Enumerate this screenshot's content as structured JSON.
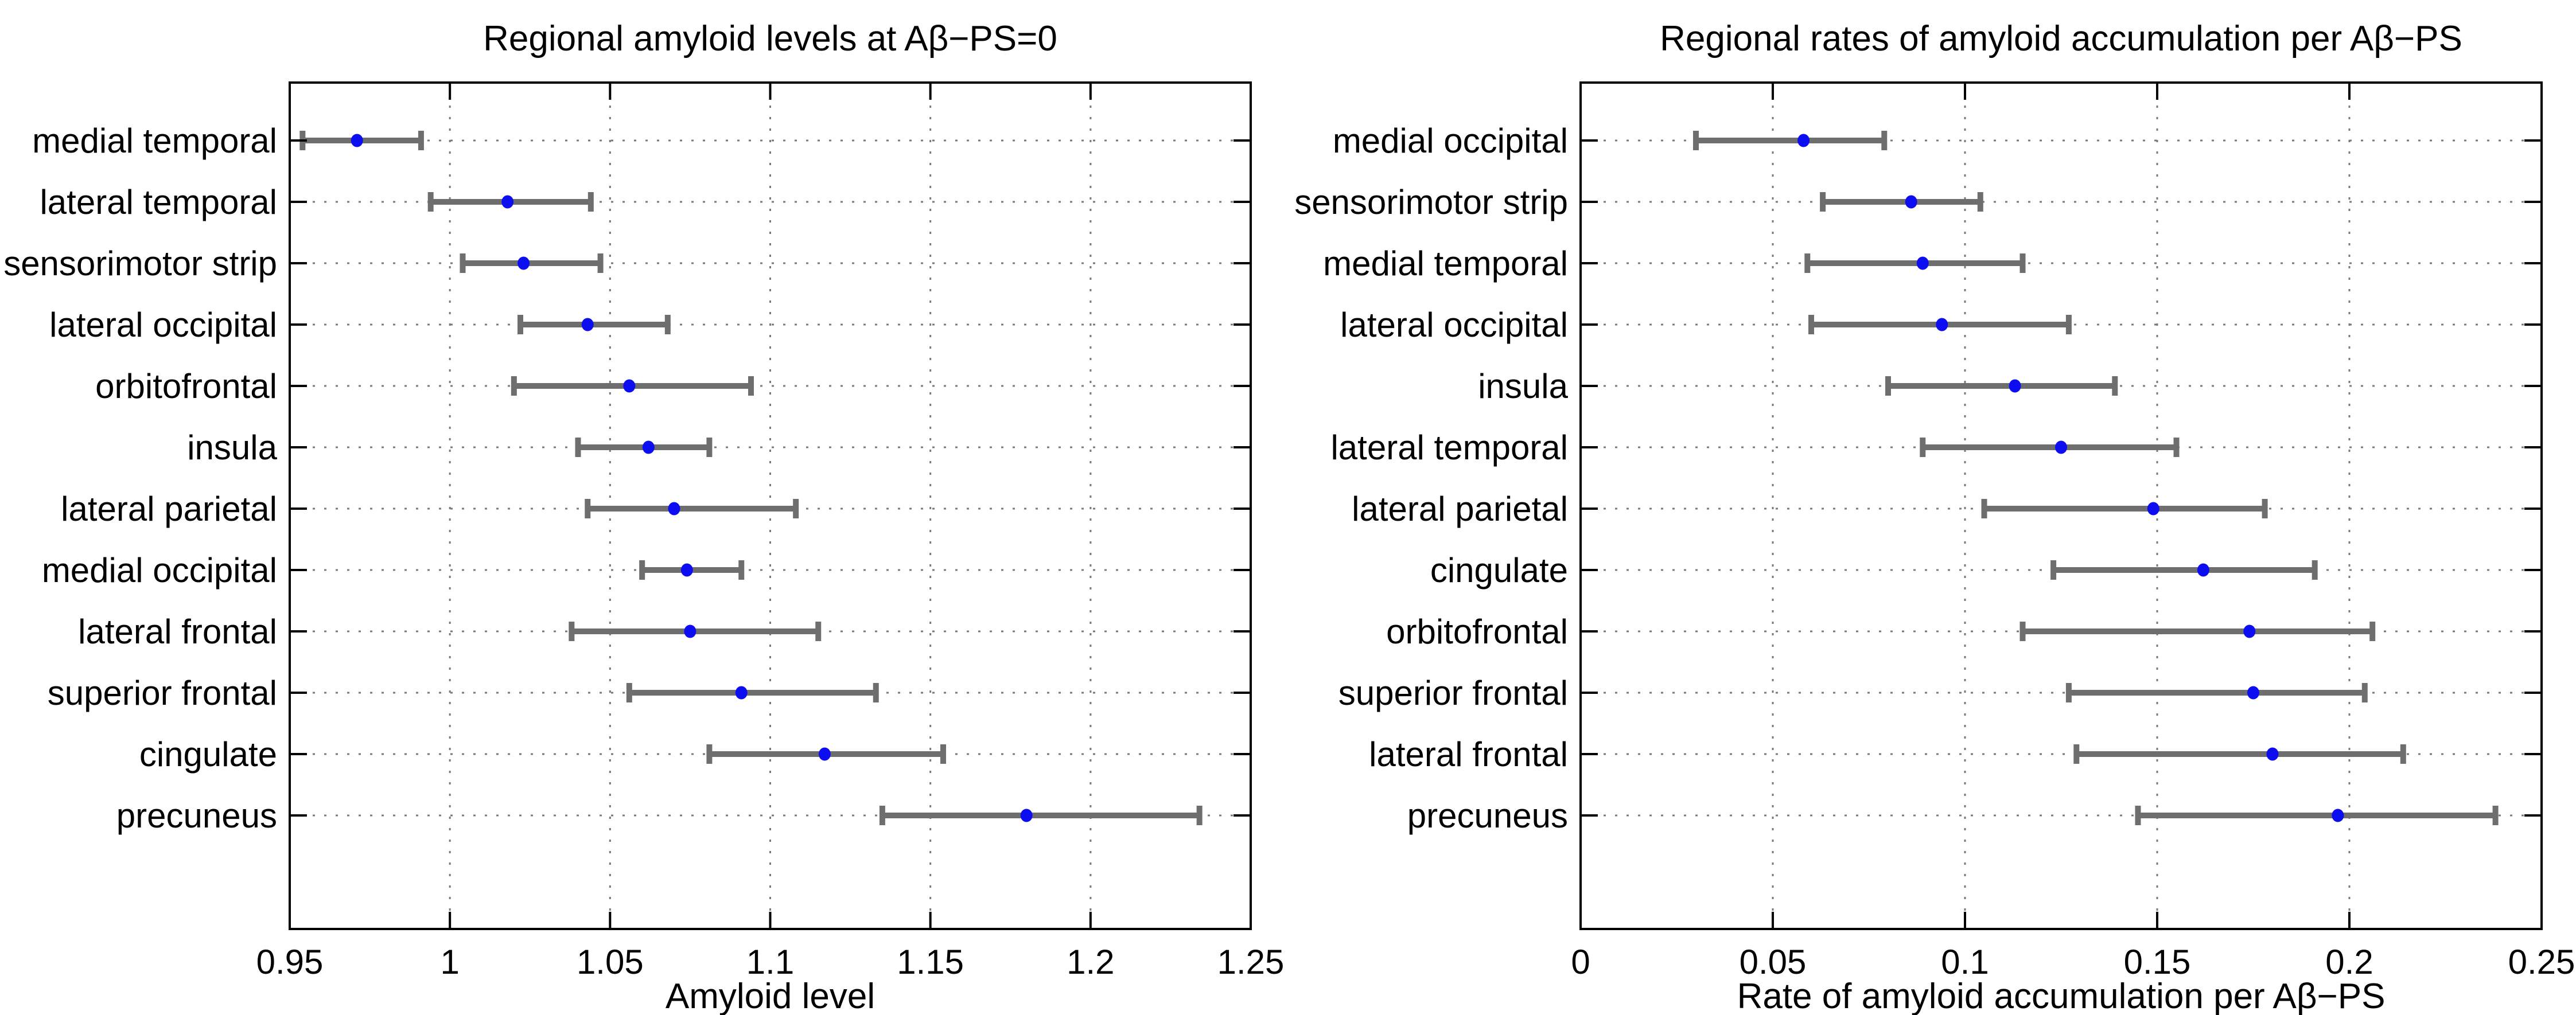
{
  "figure": {
    "background": "#ffffff"
  },
  "style": {
    "marker_color": "#0d0df2",
    "errorbar_color": "#6e6e6e",
    "grid_color": "#7a7a7a",
    "axis_color": "#000000",
    "text_color": "#000000"
  },
  "chart_data": [
    {
      "type": "scatter",
      "title": "Regional amyloid levels at Aβ−PS=0",
      "xlabel": "Amyloid level",
      "ylabel": "",
      "xlim": [
        0.95,
        1.25
      ],
      "xtick_values": [
        0.95,
        1.0,
        1.05,
        1.1,
        1.15,
        1.2,
        1.25
      ],
      "xtick_labels": [
        "0.95",
        "1",
        "1.05",
        "1.1",
        "1.15",
        "1.2",
        "1.25"
      ],
      "grid": true,
      "legend_position": "none",
      "marker": "filled-circle",
      "error_bars": "95% interval, horizontal with caps",
      "categories": [
        "medial temporal",
        "lateral temporal",
        "sensorimotor strip",
        "lateral occipital",
        "orbitofrontal",
        "insula",
        "lateral parietal",
        "medial occipital",
        "lateral frontal",
        "superior frontal",
        "cingulate",
        "precuneus"
      ],
      "series": [
        {
          "name": "regional amyloid level estimate",
          "values": [
            0.971,
            1.018,
            1.023,
            1.043,
            1.056,
            1.062,
            1.07,
            1.074,
            1.075,
            1.091,
            1.117,
            1.18
          ],
          "ci_low": [
            0.954,
            0.994,
            1.004,
            1.022,
            1.02,
            1.04,
            1.043,
            1.06,
            1.038,
            1.056,
            1.081,
            1.135
          ],
          "ci_high": [
            0.991,
            1.044,
            1.047,
            1.068,
            1.094,
            1.081,
            1.108,
            1.091,
            1.115,
            1.133,
            1.154,
            1.234
          ]
        }
      ]
    },
    {
      "type": "scatter",
      "title": "Regional rates of amyloid accumulation per Aβ−PS",
      "xlabel": "Rate of amyloid accumulation per Aβ−PS",
      "ylabel": "",
      "xlim": [
        0,
        0.25
      ],
      "xtick_values": [
        0,
        0.05,
        0.1,
        0.15,
        0.2,
        0.25
      ],
      "xtick_labels": [
        "0",
        "0.05",
        "0.1",
        "0.15",
        "0.2",
        "0.25"
      ],
      "grid": true,
      "legend_position": "none",
      "marker": "filled-circle",
      "error_bars": "95% interval, horizontal with caps",
      "categories": [
        "medial occipital",
        "sensorimotor strip",
        "medial temporal",
        "lateral occipital",
        "insula",
        "lateral temporal",
        "lateral parietal",
        "cingulate",
        "orbitofrontal",
        "superior frontal",
        "lateral frontal",
        "precuneus"
      ],
      "series": [
        {
          "name": "regional accumulation rate estimate",
          "values": [
            0.058,
            0.086,
            0.089,
            0.094,
            0.113,
            0.125,
            0.149,
            0.162,
            0.174,
            0.175,
            0.18,
            0.197
          ],
          "ci_low": [
            0.03,
            0.063,
            0.059,
            0.06,
            0.08,
            0.089,
            0.105,
            0.123,
            0.115,
            0.127,
            0.129,
            0.145
          ],
          "ci_high": [
            0.079,
            0.104,
            0.115,
            0.127,
            0.139,
            0.155,
            0.178,
            0.191,
            0.206,
            0.204,
            0.214,
            0.238
          ]
        }
      ]
    }
  ]
}
